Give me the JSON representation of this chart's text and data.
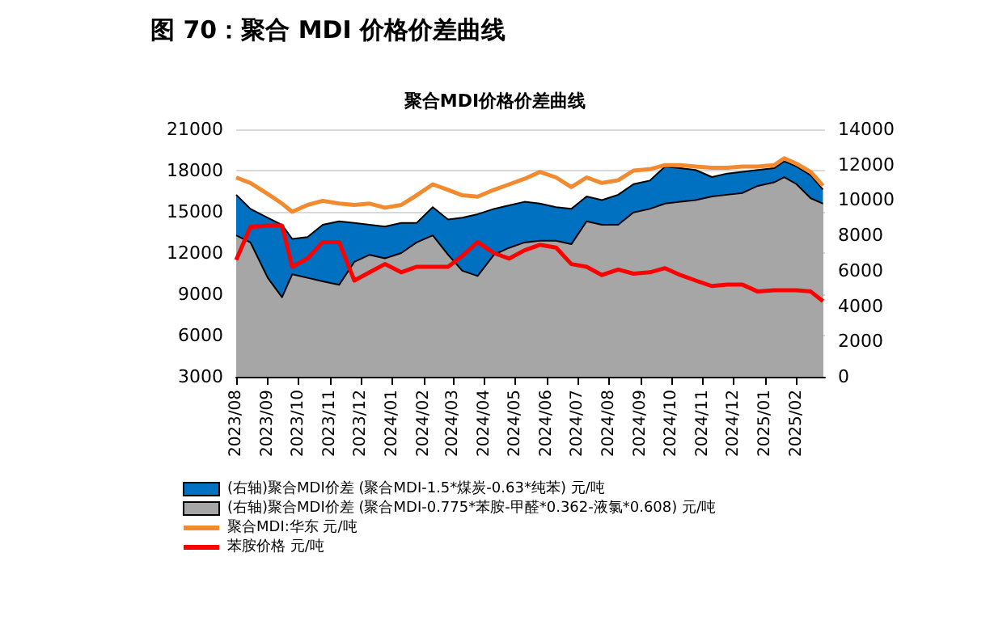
{
  "chart_data": {
    "type": "line",
    "title": "图 70：聚合 MDI 价格价差曲线",
    "subtitle": "聚合MDI价格价差曲线",
    "x": [
      "2023-08-01",
      "2023-08-15",
      "2023-09-01",
      "2023-09-15",
      "2023-09-25",
      "2023-10-10",
      "2023-10-25",
      "2023-11-10",
      "2023-11-25",
      "2023-12-10",
      "2023-12-25",
      "2024-01-10",
      "2024-01-25",
      "2024-02-10",
      "2024-02-25",
      "2024-03-10",
      "2024-03-25",
      "2024-04-10",
      "2024-04-25",
      "2024-05-10",
      "2024-05-25",
      "2024-06-10",
      "2024-06-25",
      "2024-07-10",
      "2024-07-25",
      "2024-08-10",
      "2024-08-25",
      "2024-09-10",
      "2024-09-25",
      "2024-10-10",
      "2024-10-25",
      "2024-11-10",
      "2024-11-25",
      "2024-12-10",
      "2024-12-25",
      "2025-01-10",
      "2025-01-20",
      "2025-02-01",
      "2025-02-15",
      "2025-02-27"
    ],
    "series": [
      {
        "name": "(右轴)聚合MDI价差 (聚合MDI-1.5*煤炭-0.63*纯苯) 元/吨",
        "type": "area",
        "axis": "y2",
        "color": "#0070c0",
        "values": [
          10300,
          9500,
          9000,
          8600,
          7800,
          7900,
          8600,
          8800,
          8700,
          8600,
          8500,
          8700,
          8700,
          9600,
          8900,
          9000,
          9200,
          9500,
          9700,
          9900,
          9800,
          9600,
          9500,
          10200,
          10000,
          10300,
          10900,
          11100,
          11900,
          11800,
          11700,
          11300,
          11500,
          11600,
          11700,
          11800,
          12200,
          11900,
          11400,
          10600
        ]
      },
      {
        "name": "(右轴)聚合MDI价差 (聚合MDI-0.775*苯胺-甲醛*0.362-液氯*0.608) 元/吨",
        "type": "area",
        "axis": "y2",
        "color": "#a6a6a6",
        "values": [
          8000,
          7600,
          5600,
          4500,
          5800,
          5600,
          5400,
          5200,
          6500,
          6900,
          6700,
          7000,
          7600,
          8000,
          6900,
          6000,
          5700,
          6900,
          7300,
          7600,
          7700,
          7700,
          7500,
          8800,
          8600,
          8600,
          9300,
          9500,
          9800,
          9900,
          10000,
          10200,
          10300,
          10400,
          10800,
          11000,
          11300,
          10900,
          10100,
          9800
        ]
      },
      {
        "name": "聚合MDI:华东 元/吨",
        "color": "#f28a30",
        "values": [
          17500,
          17100,
          16300,
          15600,
          15000,
          15500,
          15800,
          15600,
          15500,
          15600,
          15300,
          15500,
          16200,
          17000,
          16600,
          16200,
          16100,
          16600,
          17000,
          17400,
          17900,
          17500,
          16800,
          17500,
          17100,
          17300,
          18000,
          18100,
          18400,
          18400,
          18300,
          18200,
          18200,
          18300,
          18300,
          18400,
          18900,
          18500,
          17900,
          16900
        ]
      },
      {
        "name": "苯胺价格 元/吨",
        "color": "#ff0000",
        "values": [
          11500,
          13900,
          14000,
          14000,
          11000,
          11600,
          12800,
          12800,
          10000,
          10600,
          11200,
          10600,
          11000,
          11000,
          11000,
          11800,
          12800,
          12000,
          11600,
          12200,
          12600,
          12400,
          11200,
          11000,
          10400,
          10800,
          10500,
          10600,
          10900,
          10400,
          10000,
          9600,
          9700,
          9700,
          9200,
          9300,
          9300,
          9300,
          9200,
          8500
        ]
      }
    ],
    "xlim": [
      "2023-08-01",
      "2025-03-01"
    ],
    "xticks": [
      {
        "value": "2023-08",
        "label": "2023/08"
      },
      {
        "value": "2023-09",
        "label": "2023/09"
      },
      {
        "value": "2023-10",
        "label": "2023/10"
      },
      {
        "value": "2023-11",
        "label": "2023/11"
      },
      {
        "value": "2023-12",
        "label": "2023/12"
      },
      {
        "value": "2024-01",
        "label": "2024/01"
      },
      {
        "value": "2024-02",
        "label": "2024/02"
      },
      {
        "value": "2024-03",
        "label": "2024/03"
      },
      {
        "value": "2024-04",
        "label": "2024/04"
      },
      {
        "value": "2024-05",
        "label": "2024/05"
      },
      {
        "value": "2024-06",
        "label": "2024/06"
      },
      {
        "value": "2024-07",
        "label": "2024/07"
      },
      {
        "value": "2024-08",
        "label": "2024/08"
      },
      {
        "value": "2024-09",
        "label": "2024/09"
      },
      {
        "value": "2024-10",
        "label": "2024/10"
      },
      {
        "value": "2024-11",
        "label": "2024/11"
      },
      {
        "value": "2024-12",
        "label": "2024/12"
      },
      {
        "value": "2025-01",
        "label": "2025/01"
      },
      {
        "value": "2025-02",
        "label": "2025/02"
      }
    ],
    "ylim": [
      3000,
      21000
    ],
    "yticks": [
      3000,
      6000,
      9000,
      12000,
      15000,
      18000,
      21000
    ],
    "y2lim": [
      0,
      14000
    ],
    "y2ticks": [
      0,
      2000,
      4000,
      6000,
      8000,
      10000,
      12000,
      14000
    ],
    "grid": "y",
    "legend": "bottom",
    "marker": "none",
    "line_style": "solid"
  }
}
